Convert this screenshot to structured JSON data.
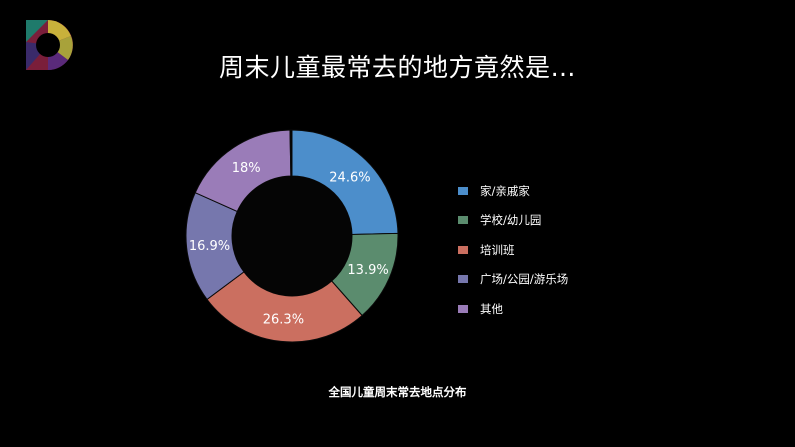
{
  "slide": {
    "title": "周末儿童最常去的地方竟然是…",
    "caption": "全国儿童周末常去地点分布"
  },
  "chart_data": {
    "type": "pie",
    "donut": true,
    "title": "全国儿童周末常去地点分布",
    "slices": [
      {
        "name": "家/亲戚家",
        "value": 24.6,
        "label": "24.6%",
        "color": "#4c8ecb"
      },
      {
        "name": "学校/幼儿园",
        "value": 13.9,
        "label": "13.9%",
        "color": "#5b8c6e"
      },
      {
        "name": "培训班",
        "value": 26.3,
        "label": "26.3%",
        "color": "#cb6f60"
      },
      {
        "name": "",
        "value": 16.9,
        "label": "16.9%",
        "color": "#7677ad"
      },
      {
        "name": "广场/公园/游乐场",
        "value": 18.0,
        "label": "18%",
        "color": "#9a7cb8"
      },
      {
        "name": "其他",
        "value": 0.3,
        "label": "",
        "color": "#000000"
      }
    ],
    "legend_position": "right"
  }
}
